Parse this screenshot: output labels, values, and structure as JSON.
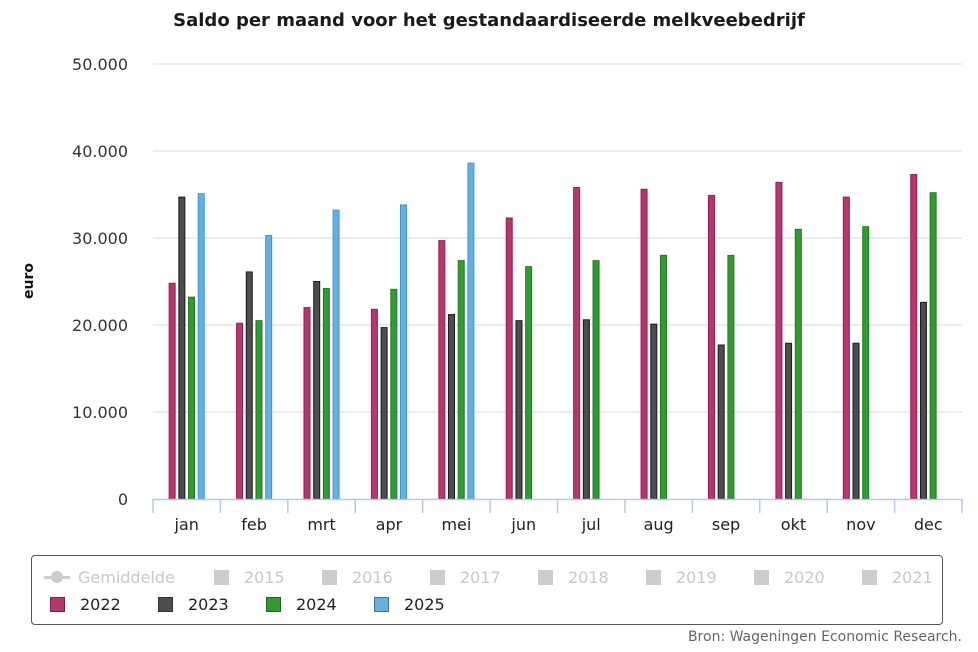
{
  "chart_data": {
    "type": "bar",
    "title": "Saldo per maand voor het gestandaardiseerde melkveebedrijf",
    "xlabel": "",
    "ylabel": "euro",
    "ylim": [
      0,
      50000
    ],
    "yticks": [
      0,
      10000,
      20000,
      30000,
      40000,
      50000
    ],
    "ytick_labels": [
      "0",
      "10.000",
      "20.000",
      "30.000",
      "40.000",
      "50.000"
    ],
    "grid": true,
    "categories": [
      "jan",
      "feb",
      "mrt",
      "apr",
      "mei",
      "jun",
      "jul",
      "aug",
      "sep",
      "okt",
      "nov",
      "dec"
    ],
    "series": [
      {
        "name": "2022",
        "color": "#b5376f",
        "border": "#9c1b4f",
        "values": [
          24800,
          20200,
          22000,
          21800,
          29700,
          32300,
          35800,
          35600,
          34900,
          36400,
          34700,
          37300
        ]
      },
      {
        "name": "2023",
        "color": "#4d4d4d",
        "border": "#1a1a1a",
        "values": [
          34700,
          26100,
          25000,
          19700,
          21200,
          20500,
          20600,
          20100,
          17700,
          17900,
          17900,
          22600
        ]
      },
      {
        "name": "2024",
        "color": "#339933",
        "border": "#1f7a1f",
        "values": [
          23200,
          20500,
          24200,
          24100,
          27400,
          26700,
          27400,
          28000,
          28000,
          31000,
          31300,
          35200
        ]
      },
      {
        "name": "2025",
        "color": "#66b0e0",
        "border": "#3a97d6",
        "values": [
          35100,
          30300,
          33200,
          33800,
          38600,
          null,
          null,
          null,
          null,
          null,
          null,
          null
        ]
      }
    ],
    "legend": {
      "placement": "bottom",
      "items": [
        {
          "label": "Gemiddelde",
          "type": "line",
          "active": false
        },
        {
          "label": "2015",
          "type": "box",
          "active": false,
          "color": "#cccccc"
        },
        {
          "label": "2016",
          "type": "box",
          "active": false,
          "color": "#cccccc"
        },
        {
          "label": "2017",
          "type": "box",
          "active": false,
          "color": "#cccccc"
        },
        {
          "label": "2018",
          "type": "box",
          "active": false,
          "color": "#cccccc"
        },
        {
          "label": "2019",
          "type": "box",
          "active": false,
          "color": "#cccccc"
        },
        {
          "label": "2020",
          "type": "box",
          "active": false,
          "color": "#cccccc"
        },
        {
          "label": "2021",
          "type": "box",
          "active": false,
          "color": "#cccccc"
        },
        {
          "label": "2022",
          "type": "box",
          "active": true,
          "color": "#b5376f"
        },
        {
          "label": "2023",
          "type": "box",
          "active": true,
          "color": "#4d4d4d"
        },
        {
          "label": "2024",
          "type": "box",
          "active": true,
          "color": "#339933"
        },
        {
          "label": "2025",
          "type": "box",
          "active": true,
          "color": "#66b0e0"
        }
      ]
    },
    "source": "Bron: Wageningen Economic Research."
  }
}
